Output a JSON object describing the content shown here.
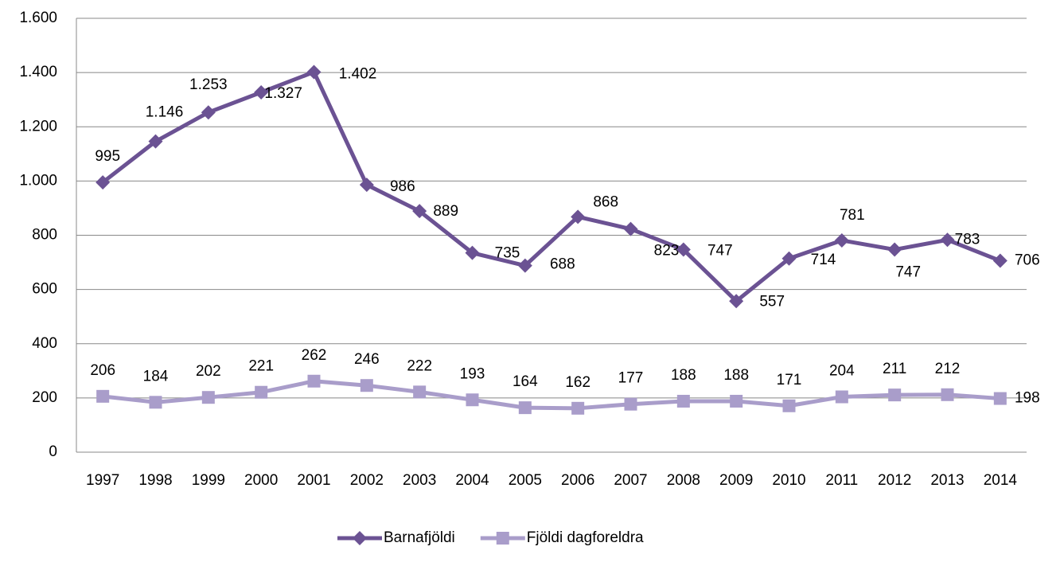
{
  "chart_data": {
    "type": "line",
    "categories": [
      "1997",
      "1998",
      "1999",
      "2000",
      "2001",
      "2002",
      "2003",
      "2004",
      "2005",
      "2006",
      "2007",
      "2008",
      "2009",
      "2010",
      "2011",
      "2012",
      "2013",
      "2014"
    ],
    "series": [
      {
        "name": "Barnafjöldi",
        "color": "#6b5293",
        "marker": "diamond",
        "values": [
          995,
          1146,
          1253,
          1327,
          1402,
          986,
          889,
          735,
          688,
          868,
          823,
          747,
          557,
          714,
          781,
          747,
          783,
          706
        ],
        "value_labels": [
          "995",
          "1.146",
          "1.253",
          "1.327",
          "1.402",
          "986",
          "889",
          "735",
          "688",
          "868",
          "823",
          "747",
          "557",
          "714",
          "781",
          "747",
          "783",
          "706"
        ]
      },
      {
        "name": "Fjöldi dagforeldra",
        "color": "#a99dca",
        "marker": "square",
        "values": [
          206,
          184,
          202,
          221,
          262,
          246,
          222,
          193,
          164,
          162,
          177,
          188,
          188,
          171,
          204,
          211,
          212,
          198
        ]
      }
    ],
    "ylim": [
      0,
      1600
    ],
    "yticks": [
      0,
      200,
      400,
      600,
      800,
      {
        "value": 1000,
        "label": "1.000"
      },
      {
        "value": 1200,
        "label": "1.200"
      },
      {
        "value": 1400,
        "label": "1.400"
      },
      {
        "value": 1600,
        "label": "1.600"
      }
    ],
    "grid": true,
    "legend": "bottom"
  }
}
